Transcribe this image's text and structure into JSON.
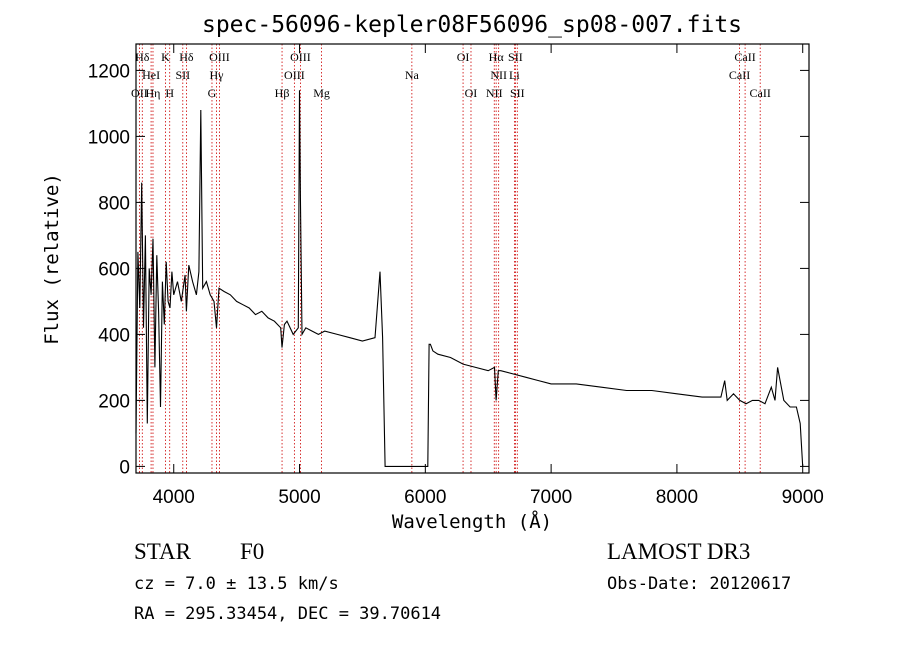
{
  "chart_data": {
    "type": "line",
    "title": "spec-56096-kepler08F56096_sp08-007.fits",
    "xlabel": "Wavelength (Å)",
    "ylabel": "Flux (relative)",
    "xlim": [
      3700,
      9050
    ],
    "ylim": [
      -20,
      1280
    ],
    "xticks": [
      4000,
      5000,
      6000,
      7000,
      8000,
      9000
    ],
    "yticks": [
      0,
      200,
      400,
      600,
      800,
      1000,
      1200
    ],
    "line_color": "#000000",
    "marker_color": "#cc0000",
    "spectrum": {
      "name": "flux",
      "x": [
        3700,
        3715,
        3730,
        3745,
        3760,
        3775,
        3790,
        3805,
        3820,
        3835,
        3850,
        3865,
        3880,
        3895,
        3910,
        3925,
        3940,
        3955,
        3970,
        3985,
        4000,
        4030,
        4060,
        4090,
        4101,
        4120,
        4150,
        4180,
        4200,
        4215,
        4230,
        4260,
        4290,
        4320,
        4340,
        4360,
        4400,
        4450,
        4500,
        4550,
        4600,
        4650,
        4700,
        4750,
        4800,
        4850,
        4861,
        4880,
        4900,
        4950,
        4990,
        5000,
        5007,
        5020,
        5050,
        5100,
        5150,
        5200,
        5300,
        5400,
        5500,
        5600,
        5640,
        5660,
        5680,
        5700,
        5800,
        5900,
        6000,
        6020,
        6030,
        6040,
        6060,
        6100,
        6200,
        6300,
        6400,
        6500,
        6550,
        6563,
        6580,
        6600,
        6700,
        6800,
        6900,
        7000,
        7200,
        7400,
        7600,
        7800,
        8000,
        8200,
        8350,
        8380,
        8400,
        8450,
        8500,
        8550,
        8600,
        8650,
        8700,
        8750,
        8780,
        8800,
        8850,
        8900,
        8950,
        8980,
        9000
      ],
      "y": [
        100,
        650,
        480,
        860,
        420,
        700,
        130,
        600,
        520,
        690,
        300,
        640,
        470,
        180,
        560,
        430,
        620,
        500,
        480,
        590,
        520,
        560,
        500,
        580,
        470,
        610,
        560,
        520,
        590,
        1080,
        540,
        560,
        520,
        500,
        420,
        540,
        530,
        520,
        500,
        490,
        480,
        460,
        470,
        450,
        440,
        420,
        360,
        430,
        440,
        400,
        420,
        1140,
        820,
        400,
        420,
        410,
        400,
        410,
        400,
        390,
        380,
        390,
        590,
        390,
        0,
        0,
        0,
        0,
        0,
        0,
        370,
        370,
        350,
        340,
        330,
        310,
        300,
        290,
        300,
        200,
        290,
        290,
        280,
        270,
        260,
        250,
        250,
        240,
        230,
        230,
        220,
        210,
        210,
        260,
        200,
        220,
        200,
        190,
        200,
        200,
        190,
        240,
        200,
        300,
        200,
        180,
        180,
        130,
        0
      ]
    },
    "line_markers": [
      {
        "label": "Hδ",
        "x": 3750,
        "row": 1
      },
      {
        "label": "OII",
        "x": 3727,
        "row": 3
      },
      {
        "label": "HeI",
        "x": 3820,
        "row": 2
      },
      {
        "label": "Hη",
        "x": 3835,
        "row": 3
      },
      {
        "label": "K",
        "x": 3934,
        "row": 1
      },
      {
        "label": "H",
        "x": 3968,
        "row": 3
      },
      {
        "label": "SII",
        "x": 4072,
        "row": 2
      },
      {
        "label": "Hδ",
        "x": 4101,
        "row": 1
      },
      {
        "label": "OIII",
        "x": 4363,
        "row": 1
      },
      {
        "label": "Hγ",
        "x": 4340,
        "row": 2
      },
      {
        "label": "G",
        "x": 4304,
        "row": 3
      },
      {
        "label": "Hβ",
        "x": 4861,
        "row": 3
      },
      {
        "label": "OIII",
        "x": 5007,
        "row": 1
      },
      {
        "label": "OIII",
        "x": 4959,
        "row": 2
      },
      {
        "label": "Mg",
        "x": 5175,
        "row": 3
      },
      {
        "label": "Na",
        "x": 5893,
        "row": 2
      },
      {
        "label": "OI",
        "x": 6300,
        "row": 1
      },
      {
        "label": "OI",
        "x": 6363,
        "row": 3
      },
      {
        "label": "Hα",
        "x": 6563,
        "row": 1
      },
      {
        "label": "NII",
        "x": 6583,
        "row": 2
      },
      {
        "label": "NII",
        "x": 6548,
        "row": 3
      },
      {
        "label": "SII",
        "x": 6716,
        "row": 1
      },
      {
        "label": "Li",
        "x": 6708,
        "row": 2
      },
      {
        "label": "SII",
        "x": 6731,
        "row": 3
      },
      {
        "label": "CaII",
        "x": 8542,
        "row": 1
      },
      {
        "label": "CaII",
        "x": 8498,
        "row": 2
      },
      {
        "label": "CaII",
        "x": 8662,
        "row": 3
      }
    ]
  },
  "footer": {
    "object_class": "STAR",
    "subclass": "F0",
    "survey": "LAMOST DR3",
    "cz_text": "cz = 7.0 ± 13.5 km/s",
    "obs_date": "Obs-Date: 20120617",
    "coords": "RA = 295.33454, DEC =  39.70614"
  }
}
